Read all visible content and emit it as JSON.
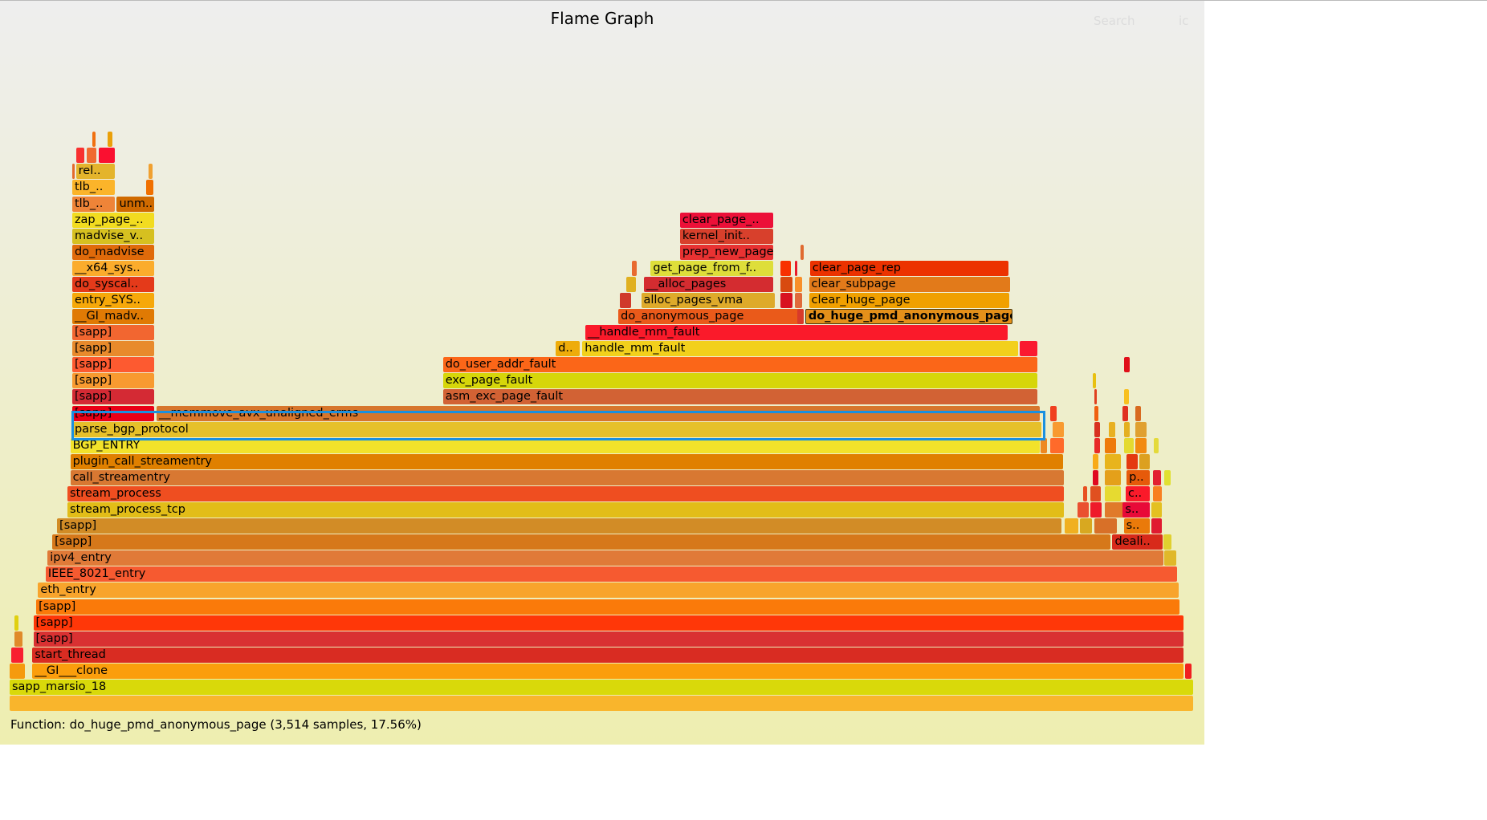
{
  "header": {
    "title": "Flame Graph",
    "search_label": "Search",
    "ic_label": "ic"
  },
  "status": {
    "text": "Function: do_huge_pmd_anonymous_page (3,514 samples, 17.56%)"
  },
  "total_samples": 19984,
  "selected_function": "do_huge_pmd_anonymous_page",
  "highlight_color": "#1a90e0",
  "frames": [
    {
      "level": 0,
      "start": 0,
      "samples": 19984,
      "name": "",
      "color": "#f9b52c"
    },
    {
      "level": 1,
      "start": 0,
      "samples": 19984,
      "name": "sapp_marsio_18",
      "color": "#d9d90a"
    },
    {
      "level": 2,
      "start": 384,
      "samples": 19440,
      "name": "__GI___clone",
      "color": "#fb9e0c"
    },
    {
      "level": 3,
      "start": 384,
      "samples": 19440,
      "name": "start_thread",
      "color": "#d92c22"
    },
    {
      "level": 4,
      "start": 400,
      "samples": 19424,
      "name": "[sapp]",
      "color": "#d93132"
    },
    {
      "level": 5,
      "start": 400,
      "samples": 19424,
      "name": "[sapp]",
      "color": "#ff3708"
    },
    {
      "level": 6,
      "start": 448,
      "samples": 19312,
      "name": "[sapp]",
      "color": "#fa7a0a"
    },
    {
      "level": 7,
      "start": 480,
      "samples": 19264,
      "name": "eth_entry",
      "color": "#f8a42c"
    },
    {
      "level": 8,
      "start": 608,
      "samples": 19104,
      "name": "IEEE_8021_entry",
      "color": "#f65a30"
    },
    {
      "level": 9,
      "start": 640,
      "samples": 18848,
      "name": "ipv4_entry",
      "color": "#e07a38"
    },
    {
      "level": 10,
      "start": 720,
      "samples": 17872,
      "name": "[sapp]",
      "color": "#d6781a"
    },
    {
      "level": 11,
      "start": 800,
      "samples": 16968,
      "name": "[sapp]",
      "color": "#d28c26"
    },
    {
      "level": 12,
      "start": 976,
      "samples": 16832,
      "name": "stream_process_tcp",
      "color": "#e2bd18"
    },
    {
      "level": 13,
      "start": 976,
      "samples": 16832,
      "name": "stream_process",
      "color": "#ef4e20"
    },
    {
      "level": 14,
      "start": 1024,
      "samples": 16784,
      "name": "call_streamentry",
      "color": "#d87832"
    },
    {
      "level": 15,
      "start": 1024,
      "samples": 16768,
      "name": "plugin_call_streamentry",
      "color": "#e08000"
    },
    {
      "level": 16,
      "start": 1024,
      "samples": 16368,
      "name": "BGP_ENTRY",
      "color": "#f2e22a"
    },
    {
      "level": 17,
      "start": 1056,
      "samples": 16368,
      "name": "parse_bgp_protocol",
      "color": "#e6c02a"
    },
    {
      "level": 18,
      "start": 1056,
      "samples": 1392,
      "name": "[sapp]",
      "color": "#ea0016"
    },
    {
      "level": 18,
      "start": 2480,
      "samples": 14912,
      "name": "__memmove_avx_unaligned_erms",
      "color": "#d7762c"
    },
    {
      "level": 19,
      "start": 1056,
      "samples": 1392,
      "name": "[sapp]",
      "color": "#d42a34"
    },
    {
      "level": 19,
      "start": 7312,
      "samples": 10048,
      "name": "asm_exc_page_fault",
      "color": "#d26234"
    },
    {
      "level": 20,
      "start": 1056,
      "samples": 1392,
      "name": "[sapp]",
      "color": "#f89a30"
    },
    {
      "level": 20,
      "start": 7312,
      "samples": 10048,
      "name": "exc_page_fault",
      "color": "#d6d60a"
    },
    {
      "level": 21,
      "start": 1056,
      "samples": 1392,
      "name": "[sapp]",
      "color": "#fd5a30"
    },
    {
      "level": 21,
      "start": 7312,
      "samples": 10048,
      "name": "do_user_addr_fault",
      "color": "#fb6618"
    },
    {
      "level": 22,
      "start": 1056,
      "samples": 1392,
      "name": "[sapp]",
      "color": "#e88a2c"
    },
    {
      "level": 22,
      "start": 9216,
      "samples": 416,
      "name": "d..",
      "color": "#eeac0a"
    },
    {
      "level": 22,
      "start": 9664,
      "samples": 7360,
      "name": "handle_mm_fault",
      "color": "#f2d01c"
    },
    {
      "level": 22,
      "start": 17040,
      "samples": 320,
      "name": "",
      "color": "#fa1a30"
    },
    {
      "level": 23,
      "start": 1056,
      "samples": 1392,
      "name": "[sapp]",
      "color": "#f26630"
    },
    {
      "level": 23,
      "start": 9712,
      "samples": 7136,
      "name": "__handle_mm_fault",
      "color": "#fa1a2a"
    },
    {
      "level": 24,
      "start": 1056,
      "samples": 1392,
      "name": "__GI_madv..",
      "color": "#e07a04"
    },
    {
      "level": 24,
      "start": 10272,
      "samples": 3136,
      "name": "do_anonymous_page",
      "color": "#ea5a1a"
    },
    {
      "level": 24,
      "start": 13424,
      "samples": 3514,
      "name": "do_huge_pmd_anonymous_page",
      "color": "#e4901a"
    },
    {
      "level": 25,
      "start": 1056,
      "samples": 1392,
      "name": "entry_SYS..",
      "color": "#f6a80a"
    },
    {
      "level": 25,
      "start": 10656,
      "samples": 2272,
      "name": "alloc_pages_vma",
      "color": "#deaa2a"
    },
    {
      "level": 25,
      "start": 13488,
      "samples": 3392,
      "name": "clear_huge_page",
      "color": "#f0a000"
    },
    {
      "level": 26,
      "start": 1056,
      "samples": 1392,
      "name": "do_syscal..",
      "color": "#e43a1a"
    },
    {
      "level": 26,
      "start": 10704,
      "samples": 2192,
      "name": "__alloc_pages",
      "color": "#d42c30"
    },
    {
      "level": 26,
      "start": 13488,
      "samples": 3408,
      "name": "clear_subpage",
      "color": "#e27a1a"
    },
    {
      "level": 27,
      "start": 1056,
      "samples": 1392,
      "name": "__x64_sys..",
      "color": "#fbac2c"
    },
    {
      "level": 27,
      "start": 10816,
      "samples": 2080,
      "name": "get_page_from_f..",
      "color": "#dede3a"
    },
    {
      "level": 27,
      "start": 13504,
      "samples": 3360,
      "name": "clear_page_rep",
      "color": "#ec3200"
    },
    {
      "level": 28,
      "start": 1056,
      "samples": 1392,
      "name": "do_madvise",
      "color": "#e06a0a"
    },
    {
      "level": 28,
      "start": 11312,
      "samples": 1584,
      "name": "prep_new_page",
      "color": "#e83232"
    },
    {
      "level": 29,
      "start": 1056,
      "samples": 1392,
      "name": "madvise_v..",
      "color": "#d6c020"
    },
    {
      "level": 29,
      "start": 11312,
      "samples": 1584,
      "name": "kernel_init..",
      "color": "#d8402c"
    },
    {
      "level": 30,
      "start": 1056,
      "samples": 1392,
      "name": "zap_page_..",
      "color": "#f2dc20"
    },
    {
      "level": 30,
      "start": 11312,
      "samples": 1584,
      "name": "clear_page_..",
      "color": "#ec1038"
    },
    {
      "level": 31,
      "start": 1056,
      "samples": 736,
      "name": "tlb_..",
      "color": "#ef8438"
    },
    {
      "level": 31,
      "start": 1808,
      "samples": 640,
      "name": "unm..",
      "color": "#d06a00"
    },
    {
      "level": 32,
      "start": 1056,
      "samples": 736,
      "name": "tlb_..",
      "color": "#fbb42a"
    },
    {
      "level": 33,
      "start": 1120,
      "samples": 672,
      "name": "rel..",
      "color": "#e4b42c"
    },
    {
      "level": 33,
      "start": 1056,
      "samples": 60,
      "name": "",
      "color": "#e46a2c"
    },
    {
      "level": 34,
      "start": 1504,
      "samples": 288,
      "name": "",
      "color": "#fa1030"
    },
    {
      "level": 34,
      "start": 1300,
      "samples": 180,
      "name": "",
      "color": "#f06a30"
    },
    {
      "level": 34,
      "start": 1120,
      "samples": 150,
      "name": "",
      "color": "#f83030"
    },
    {
      "level": 35,
      "start": 1650,
      "samples": 100,
      "name": "",
      "color": "#eaa00a"
    },
    {
      "level": 35,
      "start": 1400,
      "samples": 60,
      "name": "",
      "color": "#f07010"
    },
    {
      "level": 33,
      "start": 2350,
      "samples": 80,
      "name": "",
      "color": "#f0a030"
    },
    {
      "level": 32,
      "start": 2300,
      "samples": 140,
      "name": "",
      "color": "#f07000"
    },
    {
      "level": 2,
      "start": 0,
      "samples": 272,
      "name": "",
      "color": "#f59a0d"
    },
    {
      "level": 2,
      "start": 19840,
      "samples": 112,
      "name": "",
      "color": "#f02020"
    },
    {
      "level": 3,
      "start": 32,
      "samples": 208,
      "name": "",
      "color": "#f82030"
    },
    {
      "level": 4,
      "start": 80,
      "samples": 144,
      "name": "",
      "color": "#e08a2a"
    },
    {
      "level": 5,
      "start": 80,
      "samples": 80,
      "name": "",
      "color": "#e0d010"
    },
    {
      "level": 9,
      "start": 19488,
      "samples": 208,
      "name": "",
      "color": "#e0b82a"
    },
    {
      "level": 10,
      "start": 18608,
      "samples": 864,
      "name": "deali..",
      "color": "#d82a1a"
    },
    {
      "level": 10,
      "start": 19472,
      "samples": 150,
      "name": "",
      "color": "#e0d030"
    },
    {
      "level": 11,
      "start": 17800,
      "samples": 240,
      "name": "",
      "color": "#f0b020"
    },
    {
      "level": 11,
      "start": 18060,
      "samples": 220,
      "name": "",
      "color": "#d8a820"
    },
    {
      "level": 11,
      "start": 18300,
      "samples": 400,
      "name": "",
      "color": "#d87028"
    },
    {
      "level": 11,
      "start": 18800,
      "samples": 448,
      "name": "s..",
      "color": "#ea7a0a"
    },
    {
      "level": 11,
      "start": 19270,
      "samples": 180,
      "name": "",
      "color": "#e01a30"
    },
    {
      "level": 12,
      "start": 18020,
      "samples": 200,
      "name": "",
      "color": "#ea5030"
    },
    {
      "level": 12,
      "start": 18240,
      "samples": 200,
      "name": "",
      "color": "#ee1a2a"
    },
    {
      "level": 12,
      "start": 18480,
      "samples": 380,
      "name": "",
      "color": "#e07a2a"
    },
    {
      "level": 12,
      "start": 18784,
      "samples": 464,
      "name": "s..",
      "color": "#e80a38"
    },
    {
      "level": 12,
      "start": 19270,
      "samples": 190,
      "name": "",
      "color": "#e4c020"
    },
    {
      "level": 13,
      "start": 18120,
      "samples": 80,
      "name": "",
      "color": "#e85020"
    },
    {
      "level": 13,
      "start": 18240,
      "samples": 190,
      "name": "",
      "color": "#e05020"
    },
    {
      "level": 13,
      "start": 18480,
      "samples": 290,
      "name": "",
      "color": "#e6da30"
    },
    {
      "level": 13,
      "start": 18832,
      "samples": 416,
      "name": "c..",
      "color": "#fa1a2a"
    },
    {
      "level": 13,
      "start": 19290,
      "samples": 160,
      "name": "",
      "color": "#f88020"
    },
    {
      "level": 14,
      "start": 18280,
      "samples": 100,
      "name": "",
      "color": "#e00a20"
    },
    {
      "level": 14,
      "start": 18480,
      "samples": 290,
      "name": "",
      "color": "#e4a01a"
    },
    {
      "level": 14,
      "start": 18848,
      "samples": 400,
      "name": "p..",
      "color": "#e65a0a"
    },
    {
      "level": 14,
      "start": 19290,
      "samples": 150,
      "name": "",
      "color": "#e22030"
    },
    {
      "level": 14,
      "start": 19480,
      "samples": 120,
      "name": "",
      "color": "#e0e030"
    },
    {
      "level": 15,
      "start": 18280,
      "samples": 110,
      "name": "",
      "color": "#f8aa18"
    },
    {
      "level": 15,
      "start": 18480,
      "samples": 290,
      "name": "",
      "color": "#e8b41c"
    },
    {
      "level": 15,
      "start": 18848,
      "samples": 200,
      "name": "",
      "color": "#e43a10"
    },
    {
      "level": 15,
      "start": 19060,
      "samples": 190,
      "name": "",
      "color": "#dca020"
    },
    {
      "level": 16,
      "start": 17400,
      "samples": 120,
      "name": "",
      "color": "#ee8820"
    },
    {
      "level": 16,
      "start": 17560,
      "samples": 240,
      "name": "",
      "color": "#ff6a2a"
    },
    {
      "level": 16,
      "start": 18300,
      "samples": 110,
      "name": "",
      "color": "#e82a28"
    },
    {
      "level": 16,
      "start": 18480,
      "samples": 200,
      "name": "",
      "color": "#ee7a0a"
    },
    {
      "level": 16,
      "start": 18800,
      "samples": 180,
      "name": "",
      "color": "#e4da30"
    },
    {
      "level": 16,
      "start": 19000,
      "samples": 200,
      "name": "",
      "color": "#f28a10"
    },
    {
      "level": 16,
      "start": 19300,
      "samples": 100,
      "name": "",
      "color": "#e4da3a"
    },
    {
      "level": 17,
      "start": 17600,
      "samples": 200,
      "name": "",
      "color": "#f89a30"
    },
    {
      "level": 17,
      "start": 18300,
      "samples": 110,
      "name": "",
      "color": "#d83020"
    },
    {
      "level": 17,
      "start": 18550,
      "samples": 120,
      "name": "",
      "color": "#e8b020"
    },
    {
      "level": 17,
      "start": 18800,
      "samples": 120,
      "name": "",
      "color": "#e4b020"
    },
    {
      "level": 17,
      "start": 19000,
      "samples": 200,
      "name": "",
      "color": "#e0a030"
    },
    {
      "level": 18,
      "start": 17560,
      "samples": 120,
      "name": "",
      "color": "#f04020"
    },
    {
      "level": 18,
      "start": 18300,
      "samples": 90,
      "name": "",
      "color": "#f06010"
    },
    {
      "level": 18,
      "start": 18780,
      "samples": 110,
      "name": "",
      "color": "#e03020"
    },
    {
      "level": 18,
      "start": 19000,
      "samples": 100,
      "name": "",
      "color": "#d86a20"
    },
    {
      "level": 19,
      "start": 18300,
      "samples": 60,
      "name": "",
      "color": "#e04020"
    },
    {
      "level": 19,
      "start": 18800,
      "samples": 100,
      "name": "",
      "color": "#f8c020"
    },
    {
      "level": 20,
      "start": 18280,
      "samples": 70,
      "name": "",
      "color": "#e8c010"
    },
    {
      "level": 21,
      "start": 18810,
      "samples": 100,
      "name": "",
      "color": "#e0101a"
    },
    {
      "level": 24,
      "start": 13290,
      "samples": 120,
      "name": "",
      "color": "#d83a2a"
    },
    {
      "level": 25,
      "start": 13000,
      "samples": 230,
      "name": "",
      "color": "#d81220"
    },
    {
      "level": 25,
      "start": 13250,
      "samples": 140,
      "name": "",
      "color": "#e06a3a"
    },
    {
      "level": 25,
      "start": 10300,
      "samples": 200,
      "name": "",
      "color": "#d03a2a"
    },
    {
      "level": 26,
      "start": 13000,
      "samples": 220,
      "name": "",
      "color": "#d84a10"
    },
    {
      "level": 26,
      "start": 13250,
      "samples": 140,
      "name": "",
      "color": "#f8902a"
    },
    {
      "level": 26,
      "start": 10400,
      "samples": 180,
      "name": "",
      "color": "#e0b020"
    },
    {
      "level": 27,
      "start": 13000,
      "samples": 190,
      "name": "",
      "color": "#f83000"
    },
    {
      "level": 27,
      "start": 13250,
      "samples": 60,
      "name": "",
      "color": "#e81a2a"
    },
    {
      "level": 27,
      "start": 10500,
      "samples": 100,
      "name": "",
      "color": "#e86a30"
    },
    {
      "level": 28,
      "start": 13350,
      "samples": 60,
      "name": "",
      "color": "#e06a30"
    }
  ]
}
